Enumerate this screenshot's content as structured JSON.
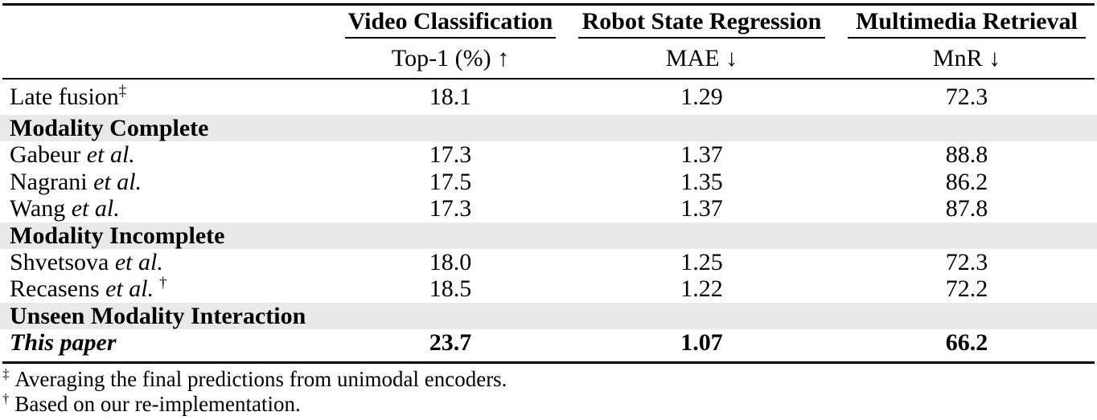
{
  "page": {
    "background": "#ffffff",
    "text_color": "#000000",
    "section_row_bg": "#e9e9e9"
  },
  "table": {
    "column_groups": [
      {
        "title": "Video Classification",
        "metric": "Top-1 (%) ↑"
      },
      {
        "title": "Robot State Regression",
        "metric": "MAE ↓"
      },
      {
        "title": "Multimedia Retrieval",
        "metric": "MnR ↓"
      }
    ],
    "rows": [
      {
        "method": "Late fusion",
        "sup": "‡",
        "top1": "18.1",
        "mae": "1.29",
        "mnr": "72.3"
      },
      {
        "section": "Modality Complete"
      },
      {
        "method": "Gabeur ",
        "etal": "et al.",
        "top1": "17.3",
        "mae": "1.37",
        "mnr": "88.8"
      },
      {
        "method": "Nagrani ",
        "etal": "et al.",
        "top1": "17.5",
        "mae": "1.35",
        "mnr": "86.2"
      },
      {
        "method": "Wang ",
        "etal": "et al.",
        "top1": "17.3",
        "mae": "1.37",
        "mnr": "87.8"
      },
      {
        "section": "Modality Incomplete"
      },
      {
        "method": "Shvetsova ",
        "etal": "et al.",
        "top1": "18.0",
        "mae": "1.25",
        "mnr": "72.3"
      },
      {
        "method": "Recasens ",
        "etal": "et al.",
        "sup": "†",
        "top1": "18.5",
        "mae": "1.22",
        "mnr": "72.2"
      },
      {
        "section": "Unseen Modality Interaction"
      },
      {
        "method": "This paper",
        "top1": "23.7",
        "mae": "1.07",
        "mnr": "66.2"
      }
    ],
    "footnotes": [
      {
        "marker": "‡",
        "text": "Averaging the final predictions from unimodal encoders."
      },
      {
        "marker": "†",
        "text": "Based on our re-implementation."
      }
    ]
  },
  "chart_data": {
    "type": "table",
    "title": "",
    "columns": [
      "Method",
      "Video Classification Top-1 (%) ↑",
      "Robot State Regression MAE ↓",
      "Multimedia Retrieval MnR ↓"
    ],
    "rows": [
      [
        "Late fusion‡",
        18.1,
        1.29,
        72.3
      ],
      [
        "Gabeur et al.",
        17.3,
        1.37,
        88.8
      ],
      [
        "Nagrani et al.",
        17.5,
        1.35,
        86.2
      ],
      [
        "Wang et al.",
        17.3,
        1.37,
        87.8
      ],
      [
        "Shvetsova et al.",
        18.0,
        1.25,
        72.3
      ],
      [
        "Recasens et al.†",
        18.5,
        1.22,
        72.2
      ],
      [
        "This paper",
        23.7,
        1.07,
        66.2
      ]
    ],
    "sections": [
      "Modality Complete",
      "Modality Incomplete",
      "Unseen Modality Interaction"
    ]
  }
}
